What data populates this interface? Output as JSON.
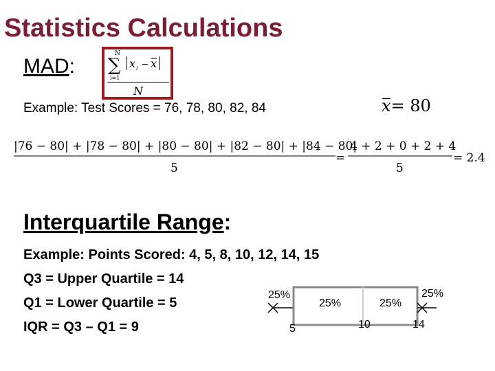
{
  "title": "Statistics Calculations",
  "mad": {
    "label": "MAD",
    "colon": ":",
    "formula": {
      "sum_top": "N",
      "sum_bottom": "i=1",
      "sigma": "∑",
      "numerator_x": "x",
      "numerator_sub": "i",
      "numerator_minus": "−",
      "numerator_xbar": "x",
      "denominator": "N"
    },
    "example": "Example: Test Scores = 76, 78, 80, 82, 84",
    "mean_symbol": "x",
    "mean_eq": "= 80",
    "calc_numerator": "|76 − 80| + |78 − 80| + |80 − 80| + |82 − 80| + |84 − 80|",
    "calc_denominator": "5",
    "calc_eq1": "=",
    "calc_mid_numerator": "4 + 2 + 0 + 2 + 4",
    "calc_mid_denominator": "5",
    "calc_eq2": "= 2.4"
  },
  "iqr": {
    "title": "Interquartile Range",
    "colon": ":",
    "lines": [
      "Example: Points Scored: 4, 5, 8, 10, 12, 14, 15",
      "Q3 = Upper Quartile = 14",
      "Q1 = Lower Quartile = 5",
      "IQR = Q3 – Q1 = 9"
    ],
    "boxplot": {
      "percent_labels": [
        "25%",
        "25%",
        "25%",
        "25%"
      ],
      "value_labels": [
        "5",
        "10",
        "14"
      ]
    }
  }
}
